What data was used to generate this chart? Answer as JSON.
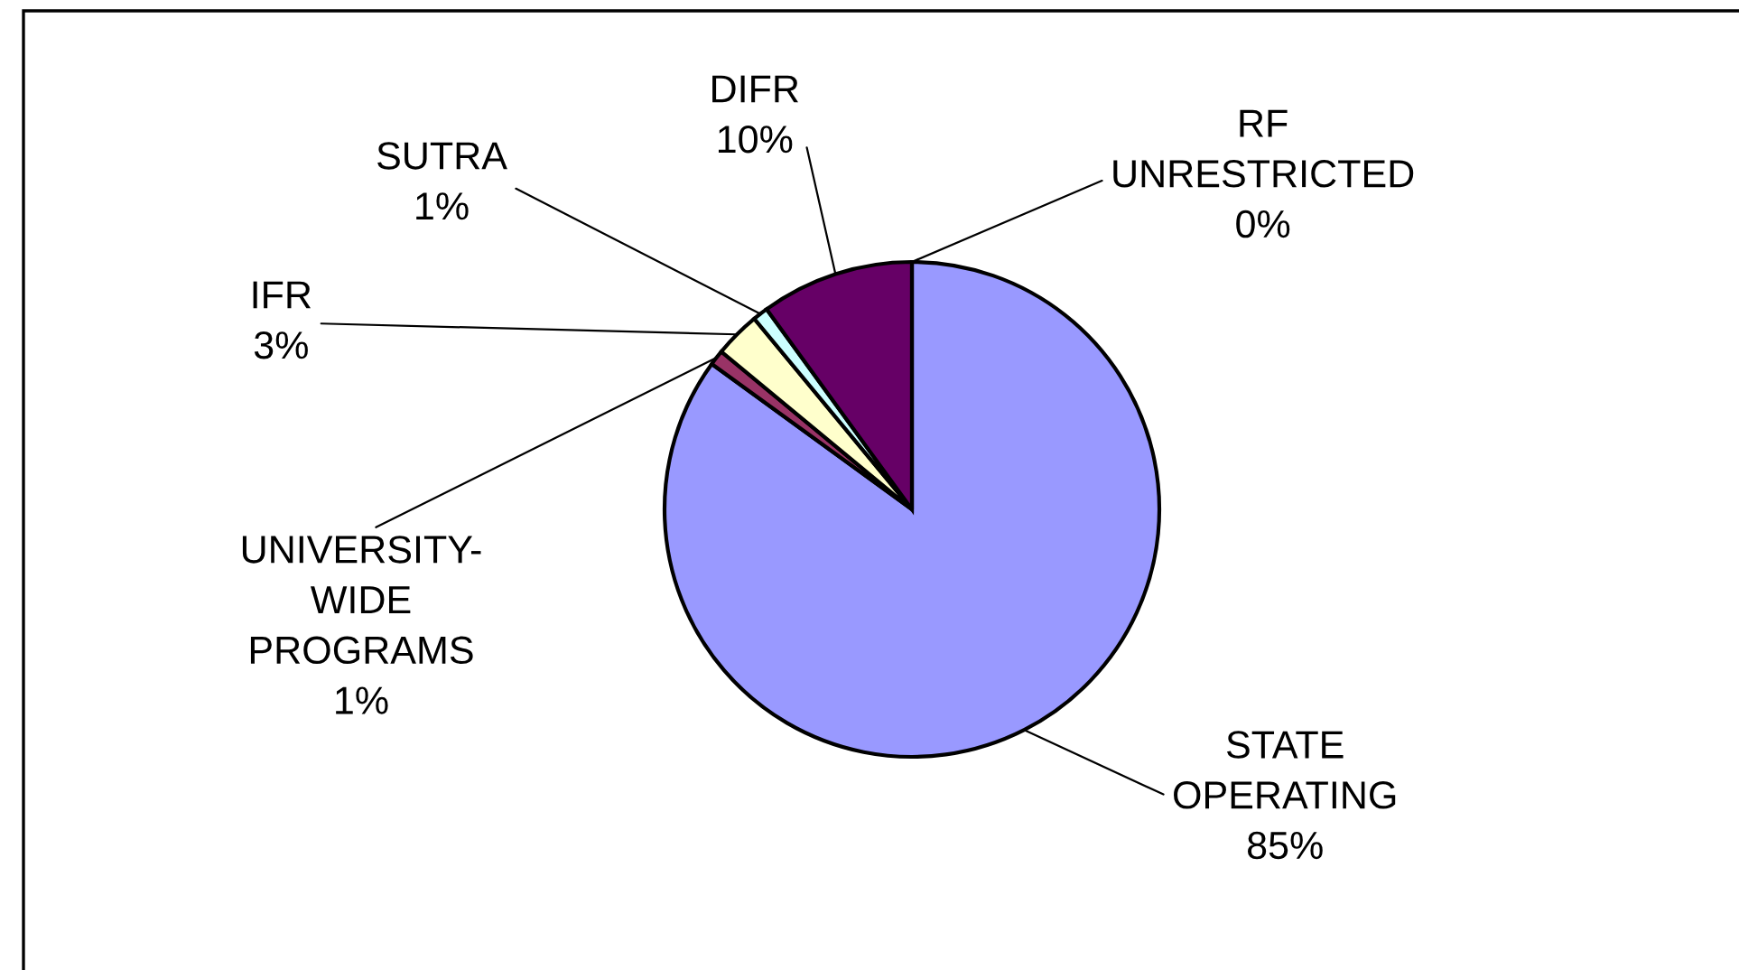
{
  "chart_data": {
    "type": "pie",
    "categories": [
      "STATE OPERATING",
      "UNIVERSITY-WIDE PROGRAMS",
      "IFR",
      "SUTRA",
      "DIFR",
      "RF UNRESTRICTED"
    ],
    "values": [
      85,
      1,
      3,
      1,
      10,
      0
    ],
    "colors": [
      "#9999ff",
      "#993366",
      "#ffffcc",
      "#ccffff",
      "#660066",
      "#000000"
    ],
    "value_labels": [
      "85%",
      "1%",
      "3%",
      "1%",
      "10%",
      "0%"
    ]
  }
}
